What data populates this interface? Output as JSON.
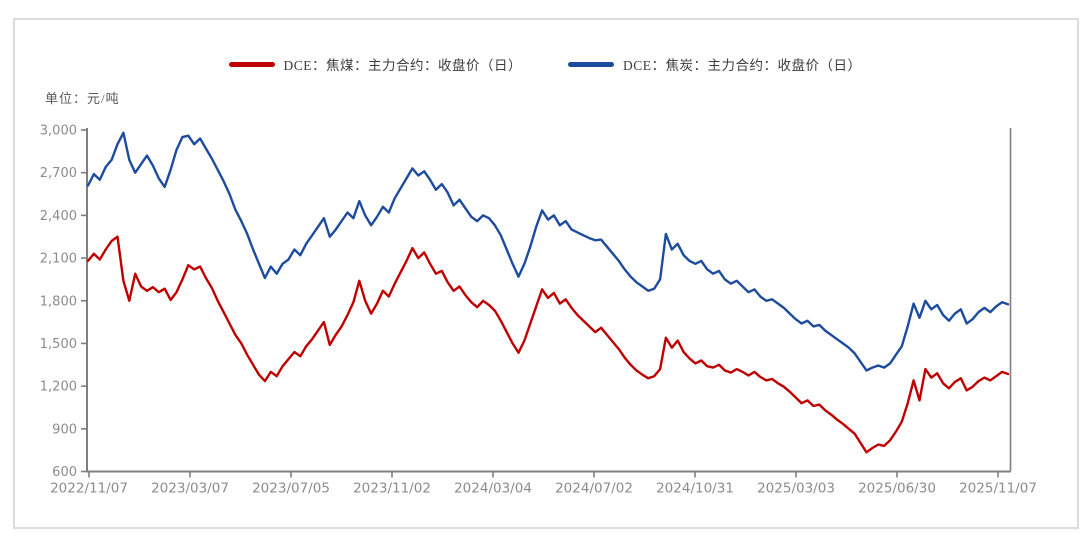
{
  "panel": {
    "background": "#ffffff",
    "border_color": "#dcdcdc"
  },
  "legend": {
    "position": "top-center",
    "items": [
      {
        "label": "DCE：焦煤：主力合约：收盘价（日）",
        "color": "#c00000"
      },
      {
        "label": "DCE：焦炭：主力合约：收盘价（日）",
        "color": "#1e4c9c"
      }
    ]
  },
  "chart_data": {
    "type": "line",
    "title": "",
    "unit_label": "单位：元/吨",
    "xlabel": "",
    "ylabel": "元/吨",
    "ylim": [
      600,
      3000
    ],
    "ytick_step": 300,
    "ytick_labels": [
      "600",
      "900",
      "1,200",
      "1,500",
      "1,800",
      "2,100",
      "2,400",
      "2,700",
      "3,000"
    ],
    "x_tick_labels": [
      "2022/11/07",
      "2023/03/07",
      "2023/07/05",
      "2023/11/02",
      "2024/03/04",
      "2024/07/02",
      "2024/10/31",
      "2025/03/03",
      "2025/06/30",
      "2025/11/07"
    ],
    "x_range": [
      "2022/11/07",
      "2025/11/07"
    ],
    "sampling": "weekly (values estimated from plot)",
    "grid": false,
    "legend_position": "top-center",
    "axis_color": "#7f7f7f",
    "tick_label_color": "#8c8c8c",
    "series": [
      {
        "name": "DCE：焦煤：主力合约：收盘价（日）",
        "color": "#c00000",
        "values": [
          2080,
          2130,
          2090,
          2160,
          2220,
          2250,
          1940,
          1800,
          1990,
          1900,
          1870,
          1895,
          1860,
          1885,
          1805,
          1860,
          1950,
          2050,
          2020,
          2040,
          1960,
          1890,
          1800,
          1720,
          1640,
          1560,
          1500,
          1420,
          1350,
          1280,
          1235,
          1300,
          1270,
          1340,
          1390,
          1440,
          1410,
          1480,
          1530,
          1590,
          1650,
          1490,
          1560,
          1620,
          1700,
          1790,
          1940,
          1800,
          1710,
          1780,
          1870,
          1830,
          1920,
          2000,
          2080,
          2170,
          2100,
          2140,
          2060,
          1990,
          2010,
          1930,
          1870,
          1900,
          1840,
          1790,
          1755,
          1800,
          1770,
          1730,
          1660,
          1580,
          1500,
          1435,
          1520,
          1640,
          1760,
          1880,
          1820,
          1855,
          1780,
          1810,
          1750,
          1700,
          1660,
          1620,
          1580,
          1610,
          1560,
          1510,
          1460,
          1400,
          1350,
          1310,
          1280,
          1255,
          1270,
          1320,
          1540,
          1470,
          1520,
          1440,
          1395,
          1360,
          1380,
          1340,
          1330,
          1350,
          1310,
          1295,
          1320,
          1300,
          1275,
          1300,
          1265,
          1240,
          1250,
          1220,
          1195,
          1160,
          1120,
          1080,
          1100,
          1060,
          1070,
          1030,
          1000,
          965,
          935,
          900,
          865,
          800,
          735,
          765,
          790,
          780,
          820,
          880,
          950,
          1080,
          1240,
          1100,
          1320,
          1260,
          1290,
          1220,
          1185,
          1230,
          1255,
          1170,
          1195,
          1235,
          1260,
          1240,
          1270,
          1300,
          1285
        ]
      },
      {
        "name": "DCE：焦炭：主力合约：收盘价（日）",
        "color": "#1e4c9c",
        "values": [
          2610,
          2690,
          2650,
          2740,
          2790,
          2900,
          2980,
          2790,
          2700,
          2760,
          2820,
          2750,
          2660,
          2600,
          2720,
          2860,
          2950,
          2960,
          2900,
          2940,
          2870,
          2800,
          2720,
          2640,
          2550,
          2440,
          2360,
          2270,
          2160,
          2060,
          1960,
          2040,
          1990,
          2060,
          2090,
          2160,
          2120,
          2200,
          2260,
          2320,
          2380,
          2250,
          2300,
          2360,
          2420,
          2380,
          2500,
          2400,
          2330,
          2390,
          2460,
          2420,
          2520,
          2590,
          2660,
          2730,
          2680,
          2710,
          2650,
          2580,
          2620,
          2560,
          2470,
          2510,
          2450,
          2390,
          2360,
          2400,
          2380,
          2330,
          2260,
          2160,
          2060,
          1970,
          2060,
          2180,
          2320,
          2435,
          2370,
          2400,
          2330,
          2360,
          2300,
          2280,
          2260,
          2240,
          2225,
          2230,
          2180,
          2130,
          2080,
          2020,
          1970,
          1930,
          1900,
          1870,
          1885,
          1950,
          2270,
          2160,
          2200,
          2120,
          2080,
          2060,
          2080,
          2020,
          1990,
          2010,
          1950,
          1920,
          1940,
          1900,
          1860,
          1880,
          1830,
          1800,
          1810,
          1780,
          1750,
          1710,
          1670,
          1640,
          1660,
          1620,
          1630,
          1590,
          1560,
          1530,
          1500,
          1470,
          1430,
          1370,
          1310,
          1330,
          1345,
          1330,
          1360,
          1420,
          1480,
          1620,
          1780,
          1680,
          1800,
          1740,
          1770,
          1700,
          1660,
          1710,
          1740,
          1640,
          1670,
          1720,
          1750,
          1720,
          1760,
          1790,
          1775
        ]
      }
    ]
  }
}
